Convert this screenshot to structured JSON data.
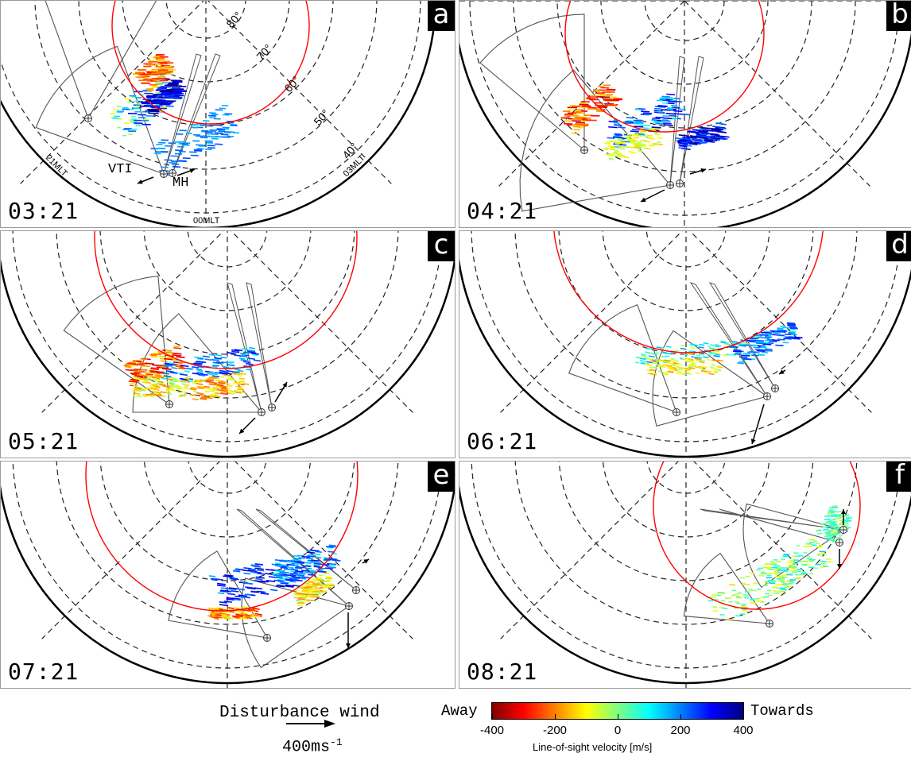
{
  "panels": [
    {
      "letter": "a",
      "time": "03:21"
    },
    {
      "letter": "b",
      "time": "04:21"
    },
    {
      "letter": "c",
      "time": "05:21"
    },
    {
      "letter": "d",
      "time": "06:21"
    },
    {
      "letter": "e",
      "time": "07:21"
    },
    {
      "letter": "f",
      "time": "08:21"
    }
  ],
  "panel_a_labels": {
    "latitudes": [
      "80°",
      "70°",
      "60°",
      "50°",
      "40°"
    ],
    "mlt": [
      "21MLT",
      "00MLT",
      "03MLT"
    ],
    "stations": [
      "VTI",
      "MH"
    ]
  },
  "legend": {
    "wind_title": "Disturbance wind",
    "wind_scale": "400ms",
    "wind_scale_exp": "-1",
    "away": "Away",
    "towards": "Towards",
    "ticks": [
      "-400",
      "-200",
      "0",
      "200",
      "400"
    ],
    "colorbar_label": "Line-of-sight velocity [m/s]",
    "colorbar_range": [
      -400,
      400
    ],
    "colors": {
      "away": "#800000",
      "zero": "#80ff80",
      "towards": "#000080",
      "convection_boundary": "#ff0000"
    }
  }
}
